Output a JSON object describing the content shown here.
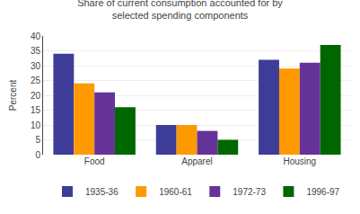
{
  "chart_data": {
    "type": "bar",
    "title": "Share of current consumption accounted for by\nselected spending components",
    "ylabel": "Percent",
    "categories": [
      "Food",
      "Apparel",
      "Housing"
    ],
    "series": [
      {
        "name": "1935-36",
        "color": "#3d3d99",
        "values": [
          34,
          10,
          32
        ]
      },
      {
        "name": "1960-61",
        "color": "#ff9900",
        "values": [
          24,
          10,
          29
        ]
      },
      {
        "name": "1972-73",
        "color": "#663399",
        "values": [
          21,
          8,
          31
        ]
      },
      {
        "name": "1996-97",
        "color": "#006600",
        "values": [
          16,
          5,
          37
        ]
      }
    ],
    "ylim": [
      0,
      40
    ],
    "yticks": [
      0,
      5,
      10,
      15,
      20,
      25,
      30,
      35,
      40
    ],
    "grid": true,
    "legend": "bottom"
  }
}
